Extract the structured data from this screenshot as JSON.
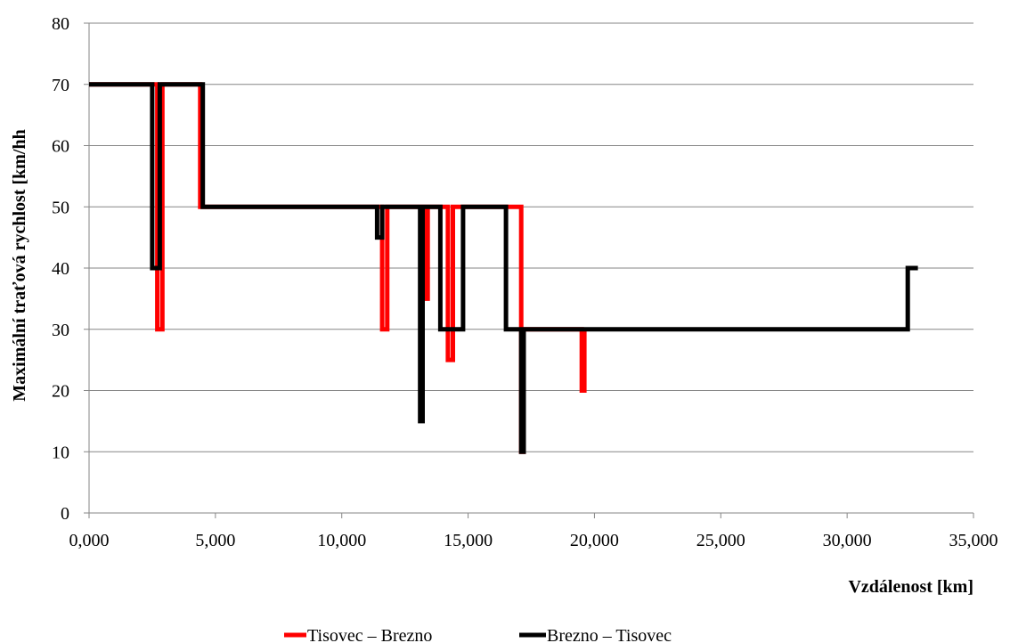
{
  "chart_data": {
    "type": "line",
    "title": "",
    "xlabel": "Vzdálenost  [km]",
    "ylabel": "Maximální  traťová  rychlost  [km/hh",
    "xlim": [
      0,
      35000
    ],
    "ylim": [
      0,
      80
    ],
    "xticks": [
      0,
      5000,
      10000,
      15000,
      20000,
      25000,
      30000,
      35000
    ],
    "xtick_labels": [
      "0,000",
      "5,000",
      "10,000",
      "15,000",
      "20,000",
      "25,000",
      "30,000",
      "35,000"
    ],
    "yticks": [
      0,
      10,
      20,
      30,
      40,
      50,
      60,
      70,
      80
    ],
    "ytick_labels": [
      "0",
      "10",
      "20",
      "30",
      "40",
      "50",
      "60",
      "70",
      "80"
    ],
    "grid": "horizontal",
    "legend_position": "bottom",
    "series": [
      {
        "name": "Tisovec  – Brezno",
        "color": "#ff0000",
        "x": [
          0,
          2700,
          2700,
          2900,
          2900,
          4400,
          4400,
          11600,
          11600,
          11800,
          11800,
          13300,
          13300,
          13400,
          13400,
          14200,
          14200,
          14400,
          14400,
          17100,
          17100,
          17200,
          17200,
          19500,
          19500,
          19600,
          19600
        ],
        "y": [
          70,
          70,
          30,
          30,
          70,
          70,
          50,
          50,
          30,
          30,
          50,
          50,
          35,
          35,
          50,
          50,
          25,
          25,
          50,
          50,
          10,
          10,
          30,
          30,
          20,
          20,
          30
        ]
      },
      {
        "name": "Brezno  – Tisovec",
        "color": "#000000",
        "x": [
          0,
          2500,
          2500,
          2800,
          2800,
          4500,
          4500,
          11400,
          11400,
          11600,
          11600,
          13100,
          13100,
          13200,
          13200,
          13900,
          13900,
          14800,
          14800,
          16500,
          16500,
          17100,
          17100,
          17200,
          17200,
          32400,
          32400,
          32800
        ],
        "y": [
          70,
          70,
          40,
          40,
          70,
          70,
          50,
          50,
          45,
          45,
          50,
          50,
          15,
          15,
          50,
          50,
          30,
          30,
          50,
          50,
          30,
          30,
          10,
          10,
          30,
          30,
          40,
          40
        ]
      }
    ]
  }
}
